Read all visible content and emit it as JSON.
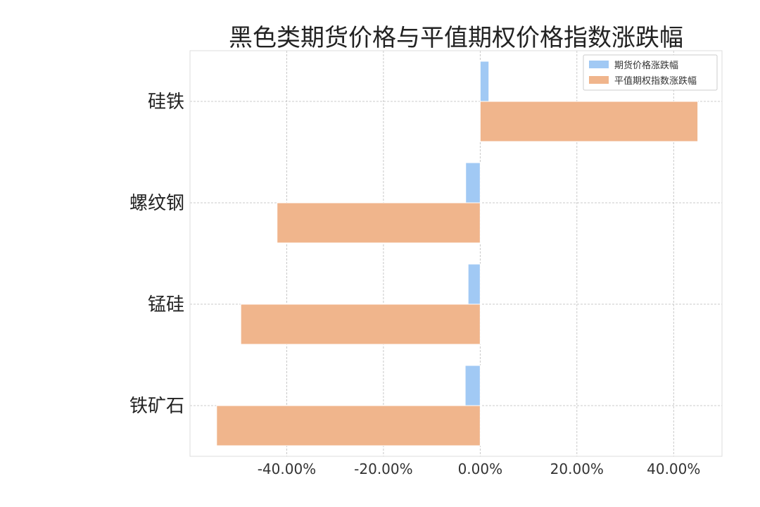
{
  "chart_data": {
    "type": "bar",
    "orientation": "horizontal",
    "title": "黑色类期货价格与平值期权价格指数涨跌幅",
    "xlabel": "",
    "ylabel": "",
    "categories": [
      "硅铁",
      "螺纹钢",
      "锰硅",
      "铁矿石"
    ],
    "series": [
      {
        "name": "期货价格涨跌幅",
        "color": "#a1c9f4",
        "values": [
          1.8,
          -3.0,
          -2.5,
          -3.1
        ]
      },
      {
        "name": "平值期权指数涨跌幅",
        "color": "#f0b58c",
        "values": [
          45.0,
          -42.0,
          -49.5,
          -54.5
        ]
      }
    ],
    "xlim": [
      -60.0,
      50.0
    ],
    "xticks": [
      -40,
      -20,
      0,
      20,
      40
    ],
    "xtick_labels": [
      "-40.00%",
      "-20.00%",
      "0.00%",
      "20.00%",
      "40.00%"
    ],
    "grid": true,
    "legend_position": "top-right"
  }
}
